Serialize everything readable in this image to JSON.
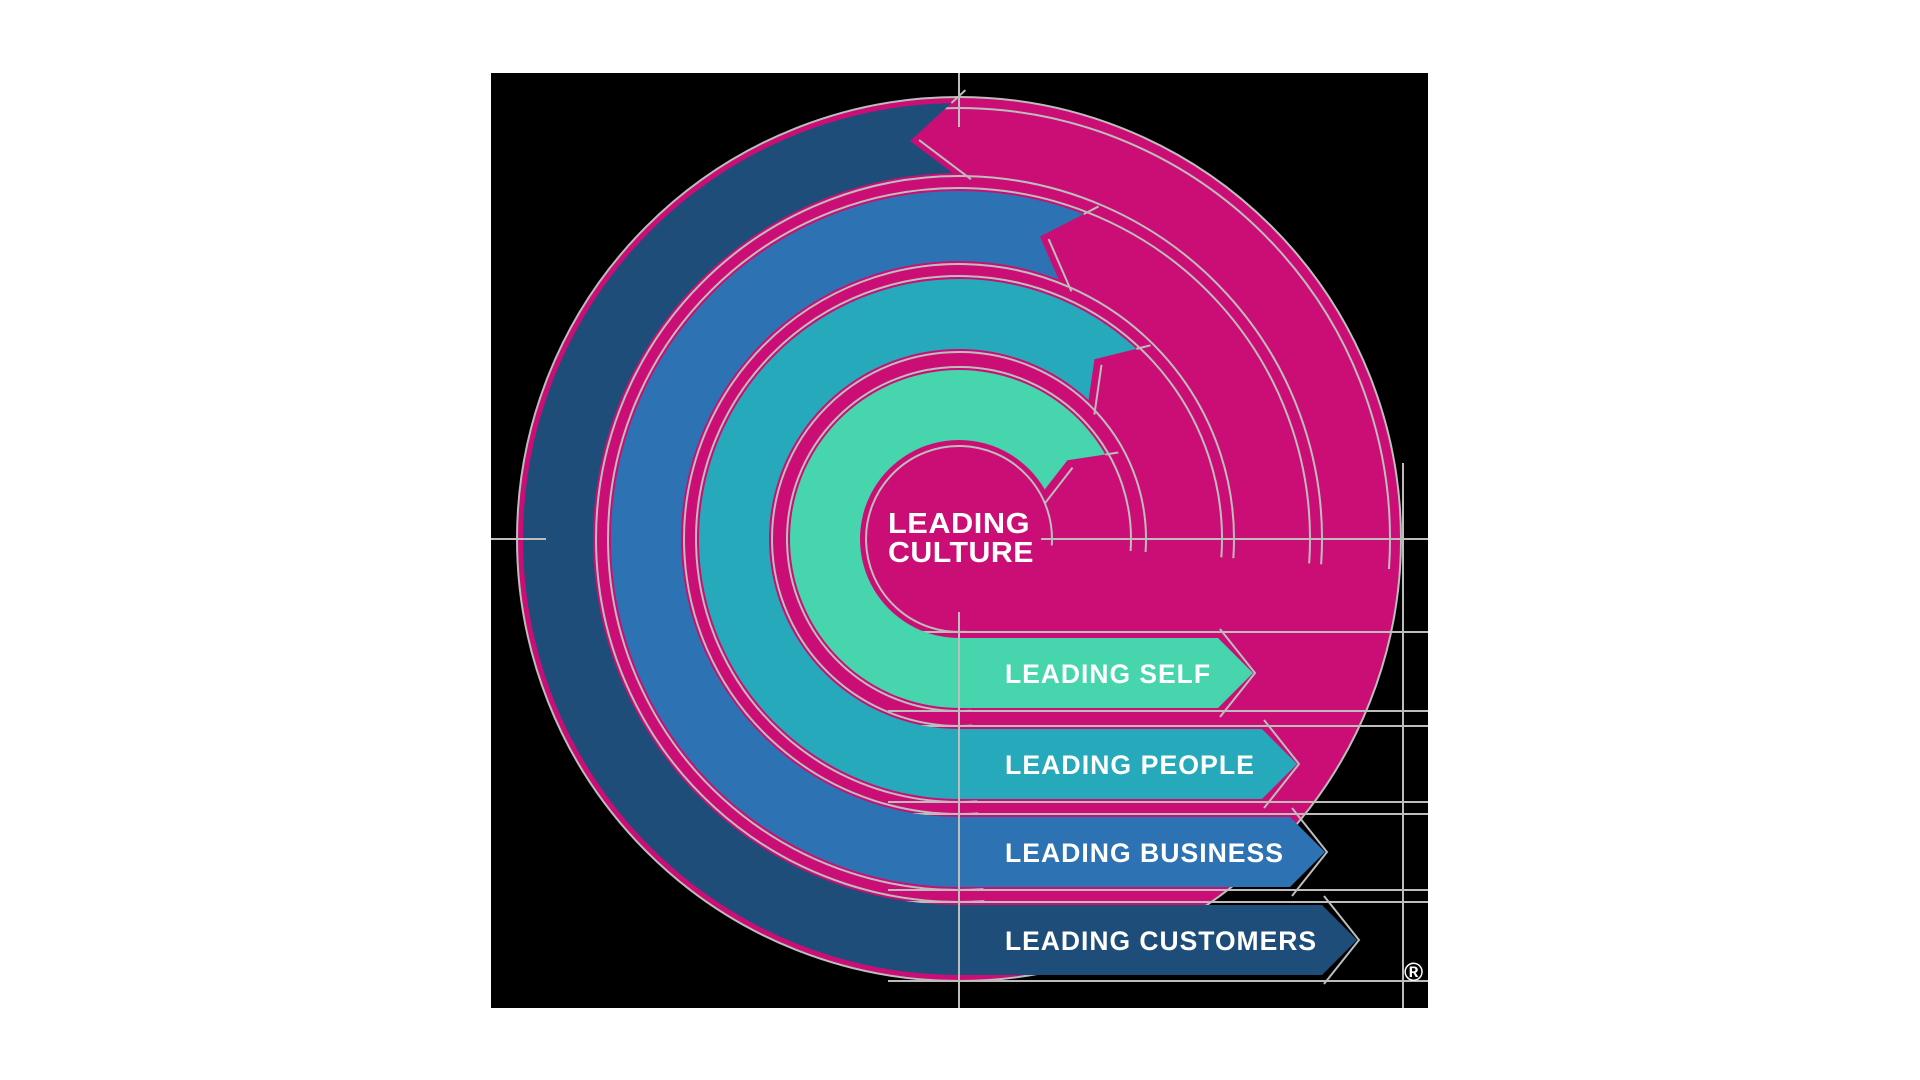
{
  "page": {
    "background": "#ffffff"
  },
  "artboard": {
    "background": "#000000"
  },
  "disc": {
    "color": "#cb0e76"
  },
  "guides": {
    "color": "#bdbdbd"
  },
  "center_badge": {
    "line1": "LEADING",
    "line2": "CULTURE",
    "text_color": "#ffffff"
  },
  "rings": [
    {
      "id": "self",
      "label": "LEADING SELF",
      "color": "#46d5ac"
    },
    {
      "id": "people",
      "label": "LEADING PEOPLE",
      "color": "#26a9ba"
    },
    {
      "id": "business",
      "label": "LEADING BUSINESS",
      "color": "#2d73b4"
    },
    {
      "id": "customers",
      "label": "LEADING CUSTOMERS",
      "color": "#1e4d79"
    }
  ],
  "registered_mark": "®"
}
